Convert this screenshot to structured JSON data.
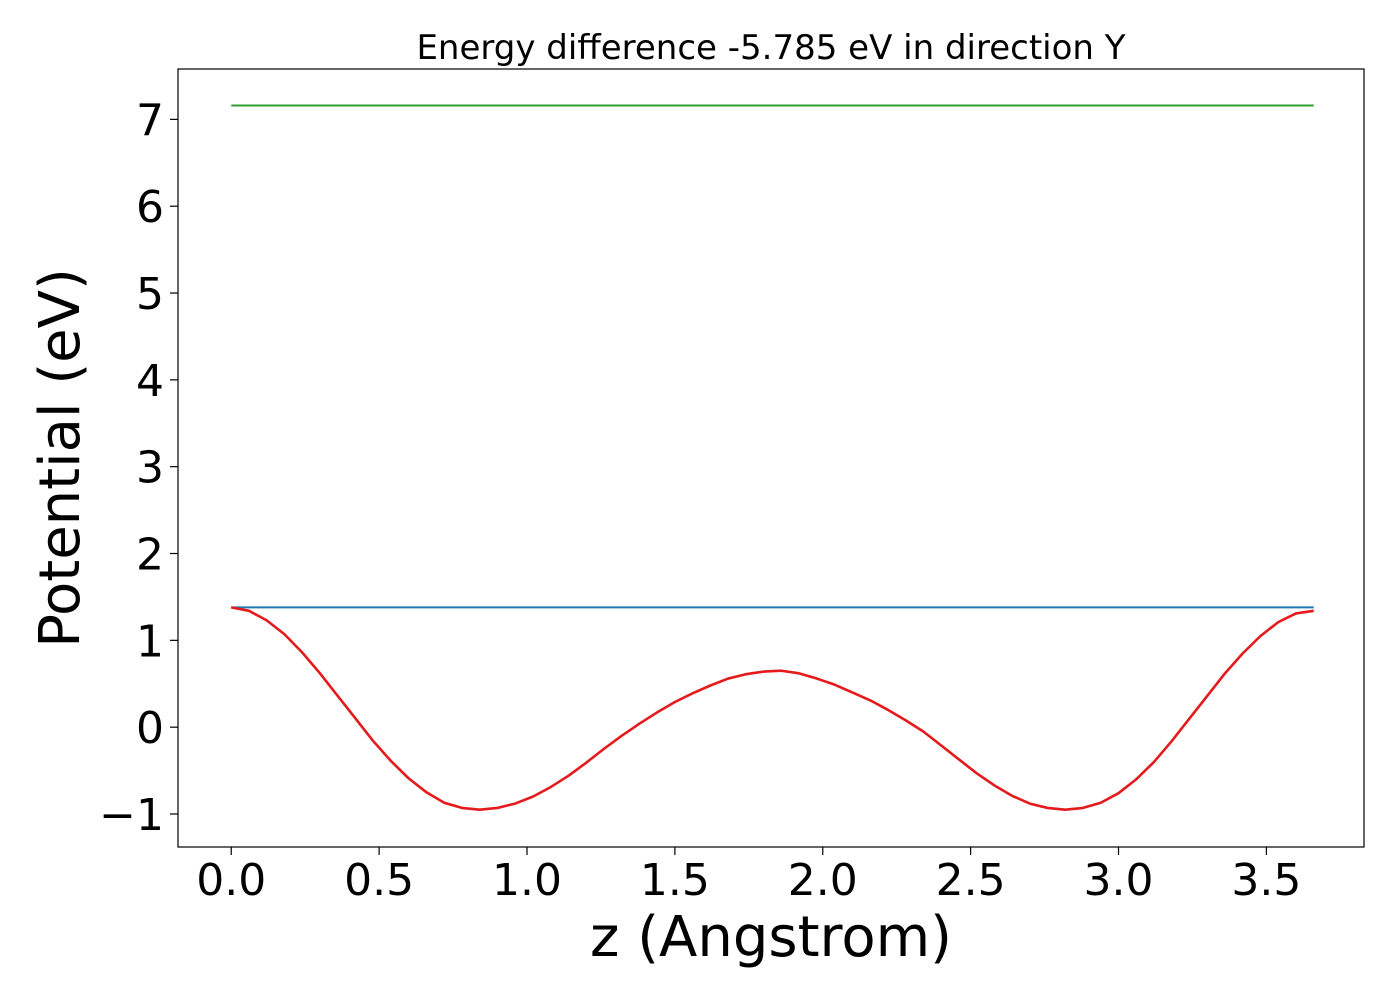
{
  "chart_data": {
    "type": "line",
    "title": "Energy difference -5.785 eV in direction Y",
    "xlabel": "z (Angstrom)",
    "ylabel": "Potential (eV)",
    "xlim": [
      -0.18,
      3.83
    ],
    "ylim": [
      -1.38,
      7.58
    ],
    "xticks": [
      0.0,
      0.5,
      1.0,
      1.5,
      2.0,
      2.5,
      3.0,
      3.5
    ],
    "xtick_labels": [
      "0.0",
      "0.5",
      "1.0",
      "1.5",
      "2.0",
      "2.5",
      "3.0",
      "3.5"
    ],
    "yticks": [
      -1,
      0,
      1,
      2,
      3,
      4,
      5,
      6,
      7
    ],
    "ytick_labels": [
      "−1",
      "0",
      "1",
      "2",
      "3",
      "4",
      "5",
      "6",
      "7"
    ],
    "grid": false,
    "series": [
      {
        "color": "#2ca02c",
        "x": [
          0.0,
          3.66
        ],
        "y": [
          7.16,
          7.16
        ]
      },
      {
        "color": "#1f77b4",
        "x": [
          0.0,
          3.66
        ],
        "y": [
          1.38,
          1.38
        ]
      },
      {
        "color": "#e41a1c",
        "x": [
          0.0,
          0.06,
          0.12,
          0.18,
          0.24,
          0.3,
          0.36,
          0.42,
          0.48,
          0.54,
          0.6,
          0.66,
          0.72,
          0.78,
          0.84,
          0.9,
          0.96,
          1.02,
          1.08,
          1.14,
          1.2,
          1.26,
          1.32,
          1.38,
          1.44,
          1.5,
          1.56,
          1.62,
          1.68,
          1.74,
          1.8,
          1.86,
          1.92,
          1.98,
          2.04,
          2.1,
          2.16,
          2.22,
          2.28,
          2.34,
          2.4,
          2.46,
          2.52,
          2.58,
          2.64,
          2.7,
          2.76,
          2.82,
          2.88,
          2.94,
          3.0,
          3.06,
          3.12,
          3.18,
          3.24,
          3.3,
          3.36,
          3.42,
          3.48,
          3.54,
          3.6,
          3.66
        ],
        "y": [
          1.38,
          1.34,
          1.23,
          1.07,
          0.86,
          0.62,
          0.36,
          0.1,
          -0.16,
          -0.39,
          -0.59,
          -0.75,
          -0.87,
          -0.93,
          -0.95,
          -0.93,
          -0.88,
          -0.8,
          -0.69,
          -0.56,
          -0.41,
          -0.25,
          -0.1,
          0.04,
          0.17,
          0.29,
          0.39,
          0.48,
          0.56,
          0.61,
          0.64,
          0.65,
          0.62,
          0.56,
          0.49,
          0.4,
          0.31,
          0.2,
          0.08,
          -0.05,
          -0.21,
          -0.37,
          -0.53,
          -0.67,
          -0.79,
          -0.88,
          -0.93,
          -0.95,
          -0.93,
          -0.87,
          -0.76,
          -0.6,
          -0.4,
          -0.16,
          0.1,
          0.36,
          0.62,
          0.85,
          1.05,
          1.21,
          1.31,
          1.34
        ]
      }
    ]
  }
}
